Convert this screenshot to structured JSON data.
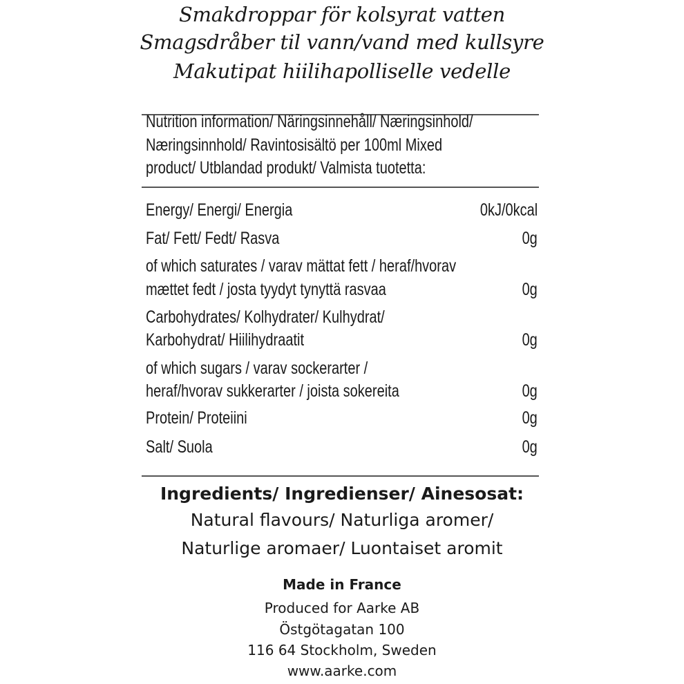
{
  "title_lines": [
    "Smakdroppar för kolsyrat vatten",
    "Smagsdråber til vann/vand med kullsyre",
    "Makutipat hiilihapolliselle vedelle"
  ],
  "nutrition_header": [
    "Nutrition information/ Näringsinnehåll/ Næringsinhold/",
    "Næringsinnhold/ Ravintosisältö per 100ml Mixed",
    "product/ Utblandad produkt/ Valmista tuotetta:"
  ],
  "nutrition_rows": [
    {
      "label": [
        "Energy/ Energi/ Energia"
      ],
      "value": "0kJ/0kcal"
    },
    {
      "label": [
        "Fat/ Fett/ Fedt/ Rasva"
      ],
      "value": "0g"
    },
    {
      "label": [
        "of which saturates / varav mättat fett / heraf/hvorav",
        "mættet fedt / josta tyydyt tynyttä rasvaa"
      ],
      "value": "0g"
    },
    {
      "label": [
        "Carbohydrates/ Kolhydrater/ Kulhydrat/",
        "Karbohydrat/ Hiilihydraatit"
      ],
      "value": "0g"
    },
    {
      "label": [
        "of which sugars / varav sockerarter /",
        "heraf/hvorav sukkerarter / joista sokereita"
      ],
      "value": "0g"
    },
    {
      "label": [
        "Protein/ Proteiini"
      ],
      "value": "0g"
    },
    {
      "label": [
        "Salt/ Suola"
      ],
      "value": "0g"
    }
  ],
  "ingredients": {
    "heading": "Ingredients/ Ingredienser/ Ainesosat:",
    "lines": [
      "Natural flavours/ Naturliga aromer/",
      "Naturlige aromaer/ Luontaiset aromit"
    ]
  },
  "footer": {
    "origin": "Made in France",
    "lines": [
      "Produced for Aarke AB",
      "Östgötagatan 100",
      "116 64 Stockholm, Sweden",
      "www.aarke.com"
    ]
  }
}
